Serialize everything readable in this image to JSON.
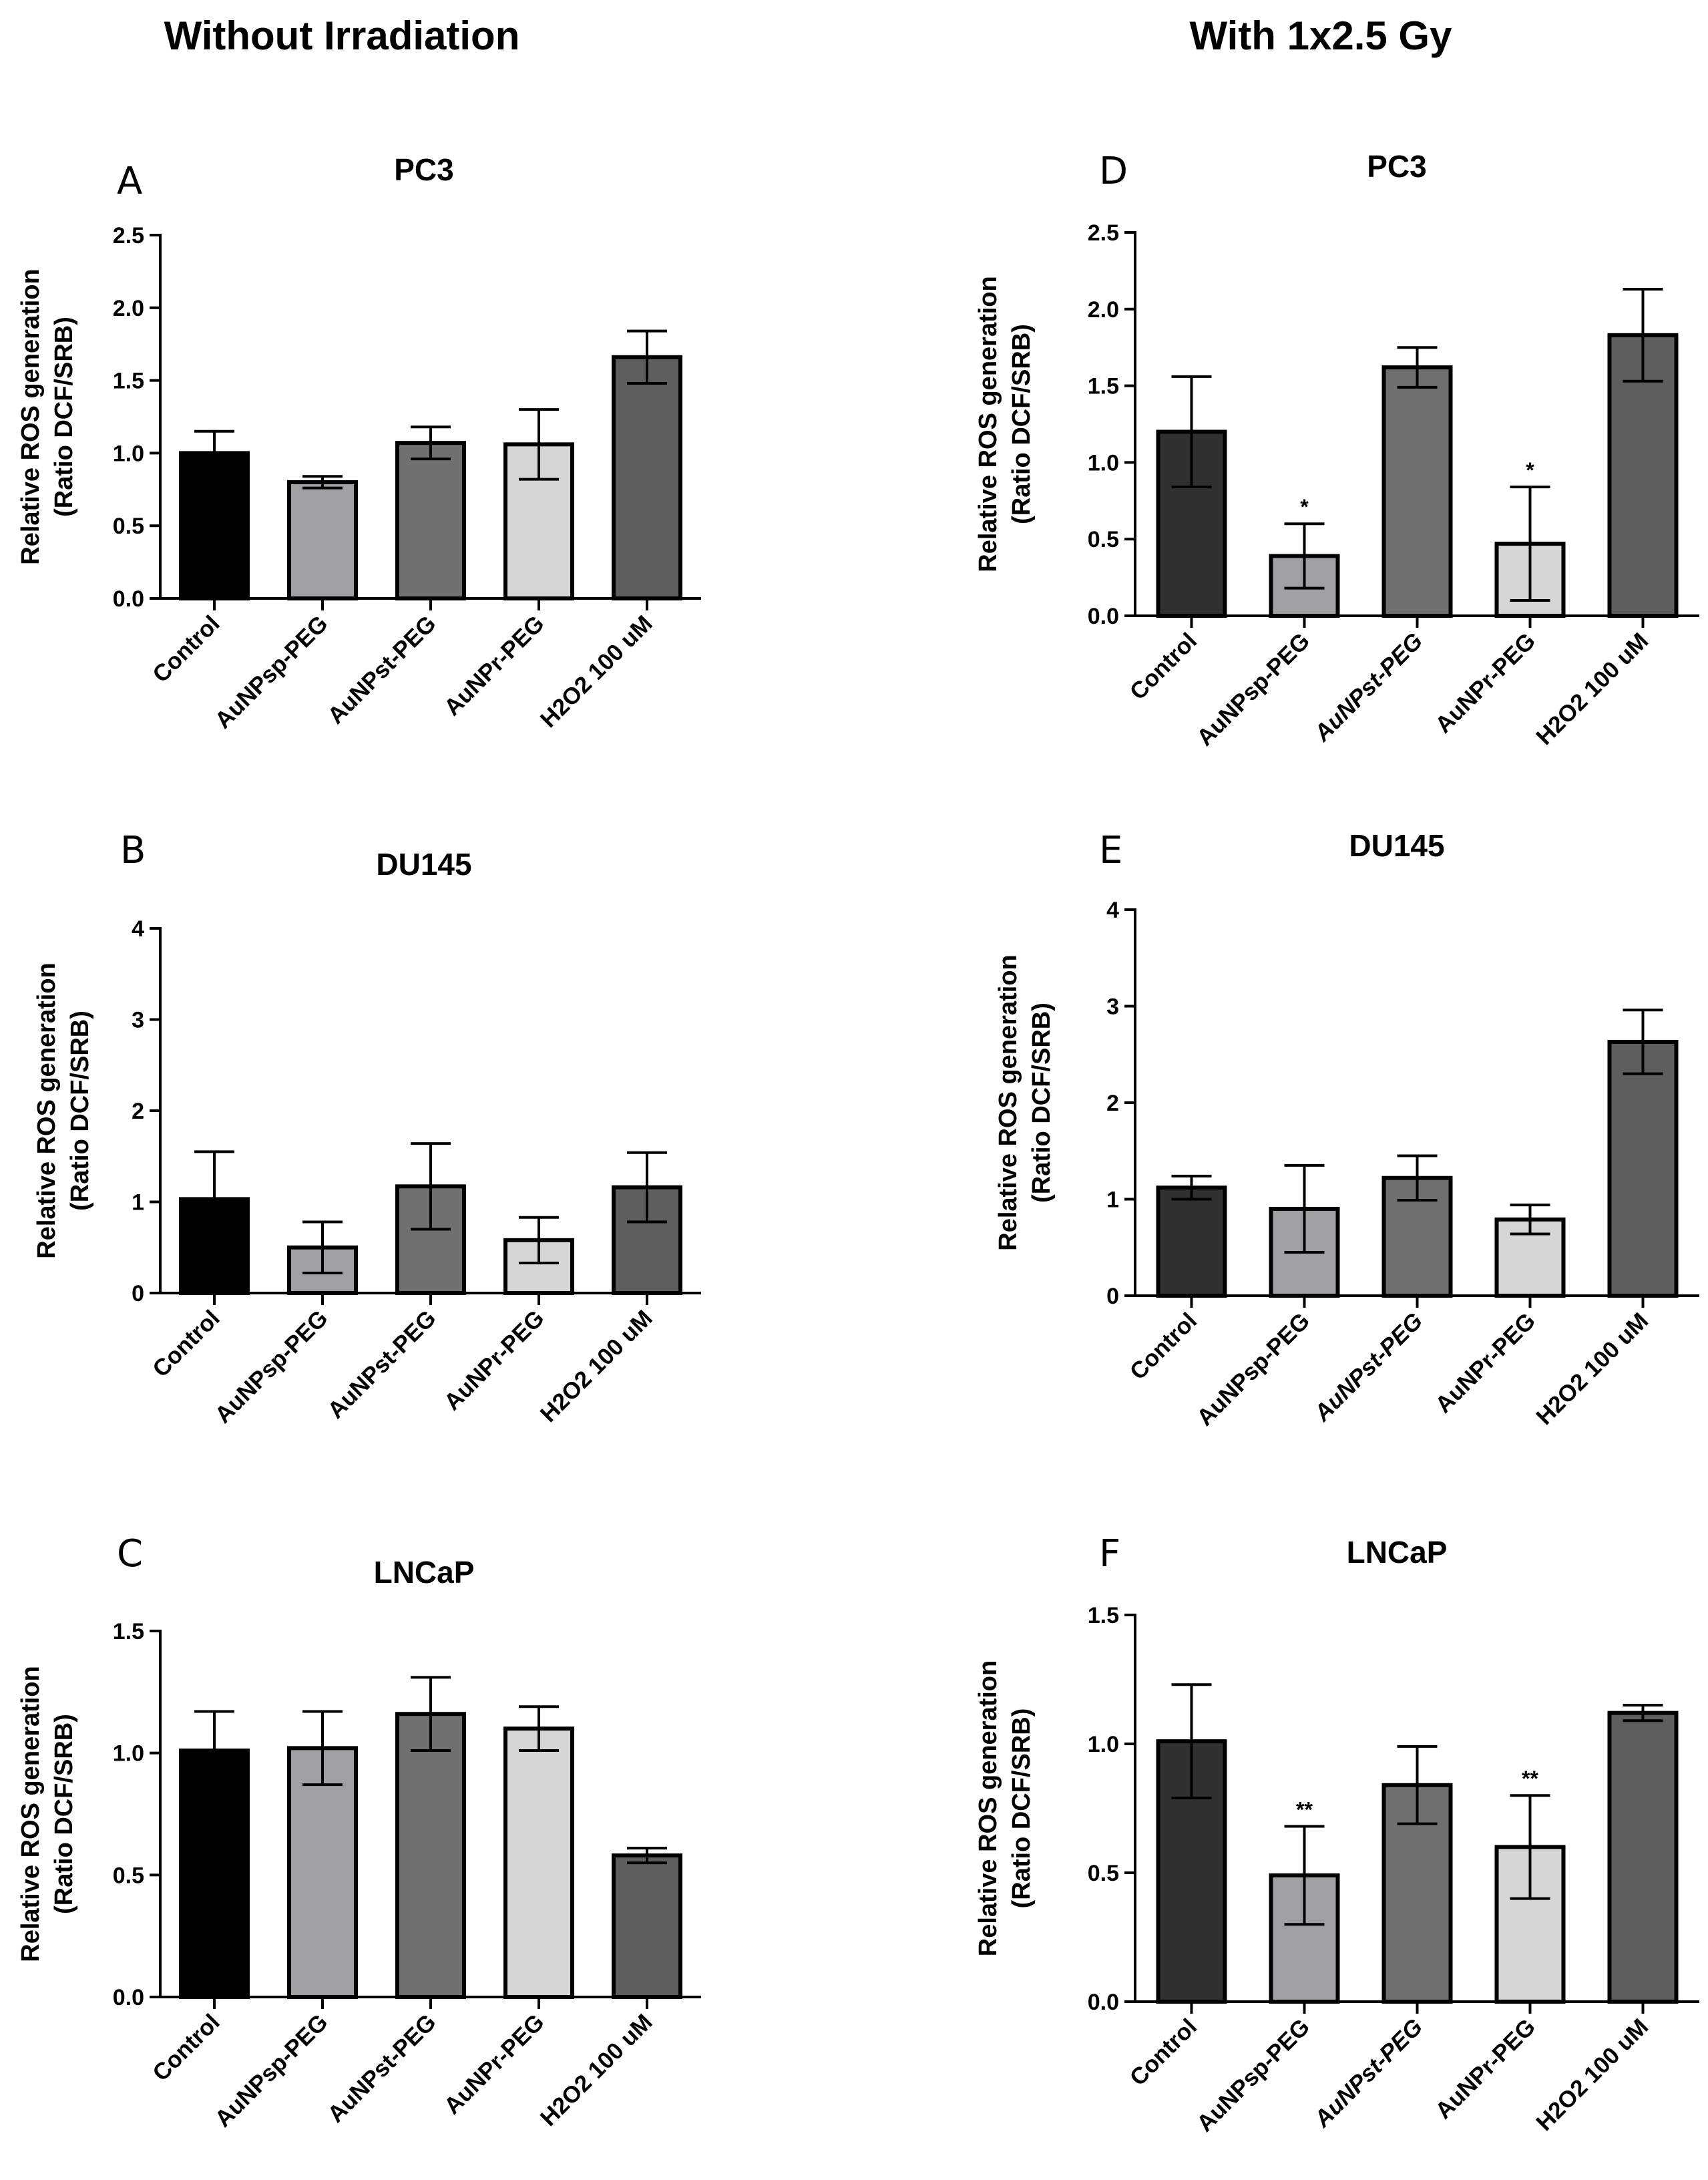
{
  "column_titles": {
    "left": "Without Irradiation",
    "right": "With 1x2.5 Gy"
  },
  "chart_data": [
    {
      "type": "bar",
      "panel": "A",
      "title": "PC3",
      "ylabel_line1": "Relative ROS generation",
      "ylabel_line2": "(Ratio DCF/SRB)",
      "ylim": [
        0,
        2.5
      ],
      "yticks": [
        "0.0",
        "0.5",
        "1.0",
        "1.5",
        "2.0",
        "2.5"
      ],
      "categories": [
        "Control",
        "AuNPsp-PEG",
        "AuNPst-PEG",
        "AuNPr-PEG",
        "H2O2 100 uM"
      ],
      "values": [
        1.0,
        0.8,
        1.07,
        1.06,
        1.66
      ],
      "errors": [
        0.15,
        0.04,
        0.11,
        0.24,
        0.18
      ],
      "annotations": [
        "",
        "",
        "",
        "",
        ""
      ],
      "colors": [
        "#000000",
        "#a0a0a4",
        "#707070",
        "#d6d6d6",
        "#5e5e5e"
      ]
    },
    {
      "type": "bar",
      "panel": "B",
      "title": "DU145",
      "ylabel_line1": "Relative ROS generation",
      "ylabel_line2": "(Ratio DCF/SRB)",
      "ylim": [
        0,
        4
      ],
      "yticks": [
        "0",
        "1",
        "2",
        "3",
        "4"
      ],
      "categories": [
        "Control",
        "AuNPsp-PEG",
        "AuNPst-PEG",
        "AuNPr-PEG",
        "H2O2 100 uM"
      ],
      "values": [
        1.03,
        0.5,
        1.17,
        0.58,
        1.16
      ],
      "errors": [
        0.52,
        0.28,
        0.47,
        0.25,
        0.38
      ],
      "annotations": [
        "",
        "",
        "",
        "",
        ""
      ],
      "colors": [
        "#000000",
        "#a0a0a4",
        "#707070",
        "#d6d6d6",
        "#5e5e5e"
      ]
    },
    {
      "type": "bar",
      "panel": "C",
      "title": "LNCaP",
      "ylabel_line1": "Relative ROS generation",
      "ylabel_line2": "(Ratio DCF/SRB)",
      "ylim": [
        0,
        1.5
      ],
      "yticks": [
        "0.0",
        "0.5",
        "1.0",
        "1.5"
      ],
      "categories": [
        "Control",
        "AuNPsp-PEG",
        "AuNPst-PEG",
        "AuNPr-PEG",
        "H2O2 100 uM"
      ],
      "values": [
        1.01,
        1.02,
        1.16,
        1.1,
        0.58
      ],
      "errors": [
        0.16,
        0.15,
        0.15,
        0.09,
        0.03
      ],
      "annotations": [
        "",
        "",
        "",
        "",
        ""
      ],
      "colors": [
        "#000000",
        "#a0a0a4",
        "#707070",
        "#d6d6d6",
        "#5e5e5e"
      ]
    },
    {
      "type": "bar",
      "panel": "D",
      "title": "PC3",
      "ylabel_line1": "Relative ROS generation",
      "ylabel_line2": "(Ratio DCF/SRB)",
      "ylim": [
        0,
        2.5
      ],
      "yticks": [
        "0.0",
        "0.5",
        "1.0",
        "1.5",
        "2.0",
        "2.5"
      ],
      "categories": [
        "Control",
        "AuNPsp-PEG",
        "AuNPst-PEG",
        "AuNPr-PEG",
        "H2O2 100 uM"
      ],
      "values": [
        1.2,
        0.39,
        1.62,
        0.47,
        1.83
      ],
      "errors": [
        0.36,
        0.21,
        0.13,
        0.37,
        0.3
      ],
      "annotations": [
        "",
        "*",
        "",
        "*",
        ""
      ],
      "colors": [
        "#303030",
        "#a0a0a4",
        "#707070",
        "#d6d6d6",
        "#5e5e5e"
      ]
    },
    {
      "type": "bar",
      "panel": "E",
      "title": "DU145",
      "ylabel_line1": "Relative ROS generation",
      "ylabel_line2": "(Ratio DCF/SRB)",
      "ylim": [
        0,
        4
      ],
      "yticks": [
        "0",
        "1",
        "2",
        "3",
        "4"
      ],
      "categories": [
        "Control",
        "AuNPsp-PEG",
        "AuNPst-PEG",
        "AuNPr-PEG",
        "H2O2 100 uM"
      ],
      "values": [
        1.12,
        0.9,
        1.22,
        0.79,
        2.63
      ],
      "errors": [
        0.12,
        0.45,
        0.23,
        0.15,
        0.33
      ],
      "annotations": [
        "",
        "",
        "",
        "",
        ""
      ],
      "colors": [
        "#303030",
        "#a0a0a4",
        "#707070",
        "#d6d6d6",
        "#5e5e5e"
      ]
    },
    {
      "type": "bar",
      "panel": "F",
      "title": "LNCaP",
      "ylabel_line1": "Relative ROS generation",
      "ylabel_line2": "(Ratio DCF/SRB)",
      "ylim": [
        0,
        1.5
      ],
      "yticks": [
        "0.0",
        "0.5",
        "1.0",
        "1.5"
      ],
      "categories": [
        "Control",
        "AuNPsp-PEG",
        "AuNPst-PEG",
        "AuNPr-PEG",
        "H2O2 100 uM"
      ],
      "values": [
        1.01,
        0.49,
        0.84,
        0.6,
        1.12
      ],
      "errors": [
        0.22,
        0.19,
        0.15,
        0.2,
        0.03
      ],
      "annotations": [
        "",
        "**",
        "",
        "**",
        ""
      ],
      "colors": [
        "#303030",
        "#a0a0a4",
        "#707070",
        "#d6d6d6",
        "#5e5e5e"
      ]
    }
  ]
}
